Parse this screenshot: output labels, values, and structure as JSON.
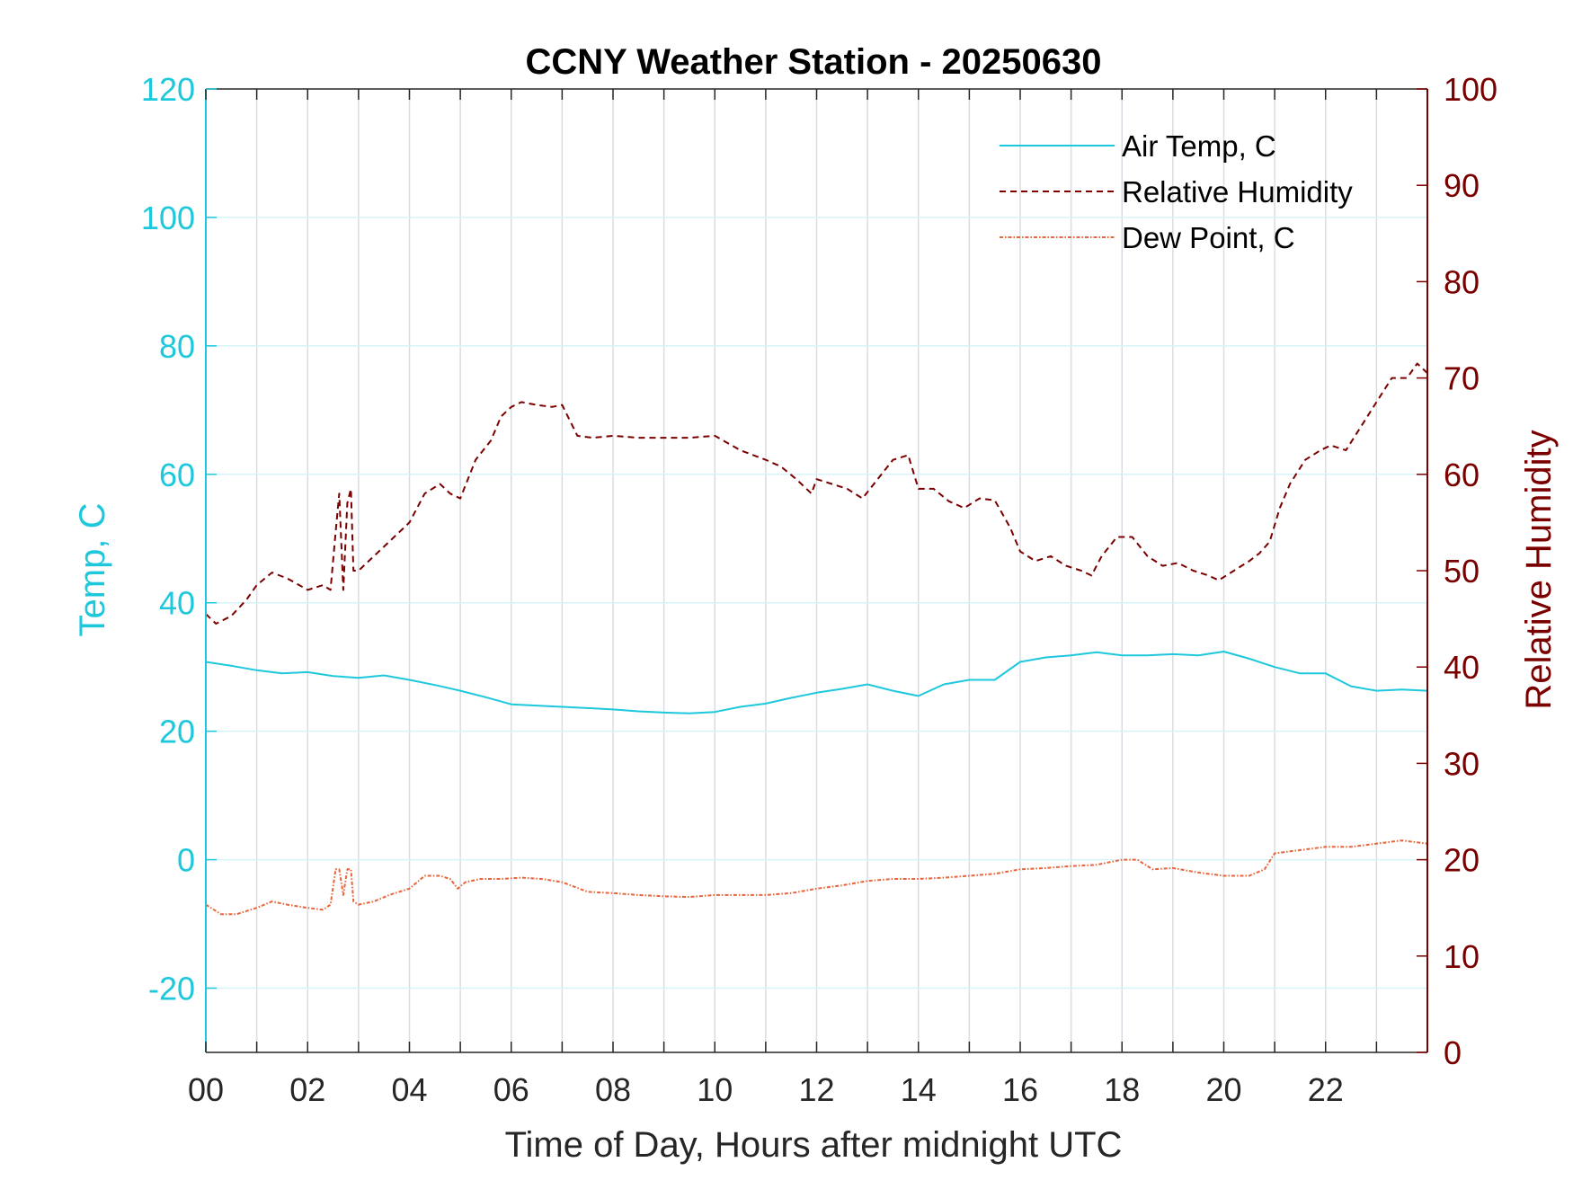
{
  "chart_data": {
    "type": "line",
    "title": "CCNY Weather Station - 20250630",
    "xlabel": "Time of Day, Hours after midnight UTC",
    "ylabel_left": "Temp, C",
    "ylabel_right": "Relative Humidity",
    "xlim": [
      0,
      24
    ],
    "ylim_left": [
      -30,
      120
    ],
    "ylim_right": [
      0,
      100
    ],
    "x_ticks": [
      0,
      2,
      4,
      6,
      8,
      10,
      12,
      14,
      16,
      18,
      20,
      22
    ],
    "x_tick_labels": [
      "00",
      "02",
      "04",
      "06",
      "08",
      "10",
      "12",
      "14",
      "16",
      "18",
      "20",
      "22"
    ],
    "y_left_ticks": [
      -20,
      0,
      20,
      40,
      60,
      80,
      100,
      120
    ],
    "y_right_ticks": [
      0,
      10,
      20,
      30,
      40,
      50,
      60,
      70,
      80,
      90,
      100
    ],
    "grid": true,
    "legend_position": "top-right",
    "colors": {
      "left_axis": "#1ec8dc",
      "right_axis": "#7a0000",
      "air_temp": "#1ec8dc",
      "humidity": "#7a0000",
      "dew_point": "#e8643a",
      "grid_vertical": "#d8dde3",
      "grid_horizontal": "#d6f3f8"
    },
    "series": [
      {
        "name": "Air Temp, C",
        "axis": "left",
        "style": "solid",
        "x": [
          0,
          0.5,
          1,
          1.5,
          2,
          2.5,
          3,
          3.5,
          4,
          4.5,
          5,
          5.5,
          6,
          6.5,
          7,
          7.5,
          8,
          8.5,
          9,
          9.5,
          10,
          10.5,
          11,
          11.5,
          12,
          12.5,
          13,
          13.5,
          14,
          14.5,
          15,
          15.5,
          16,
          16.5,
          17,
          17.5,
          18,
          18.5,
          19,
          19.5,
          20,
          20.5,
          21,
          21.5,
          22,
          22.5,
          23,
          23.5,
          24
        ],
        "y": [
          30.8,
          30.2,
          29.5,
          29.0,
          29.2,
          28.6,
          28.3,
          28.7,
          28.0,
          27.2,
          26.3,
          25.3,
          24.2,
          24.0,
          23.8,
          23.6,
          23.4,
          23.1,
          22.9,
          22.8,
          23.0,
          23.8,
          24.3,
          25.2,
          26.0,
          26.6,
          27.3,
          26.3,
          25.5,
          27.3,
          28.0,
          28.0,
          30.8,
          31.5,
          31.8,
          32.3,
          31.8,
          31.8,
          32.0,
          31.8,
          32.4,
          31.3,
          30.0,
          29.0,
          29.0,
          27.0,
          26.3,
          26.5,
          26.3
        ]
      },
      {
        "name": "Relative Humidity",
        "axis": "right",
        "style": "dashed",
        "x": [
          0,
          0.2,
          0.5,
          0.8,
          1,
          1.3,
          1.6,
          2,
          2.3,
          2.45,
          2.55,
          2.62,
          2.7,
          2.78,
          2.85,
          2.9,
          3,
          3.3,
          3.6,
          4,
          4.3,
          4.6,
          4.8,
          5,
          5.3,
          5.6,
          5.8,
          6,
          6.2,
          6.5,
          6.8,
          7,
          7.3,
          7.6,
          8,
          8.5,
          9,
          9.5,
          10,
          10.5,
          11,
          11.3,
          11.6,
          11.9,
          12,
          12.3,
          12.6,
          12.9,
          13.2,
          13.5,
          13.8,
          14,
          14.3,
          14.6,
          14.9,
          15.2,
          15.5,
          15.8,
          16,
          16.3,
          16.6,
          16.9,
          17.2,
          17.4,
          17.6,
          17.9,
          18.2,
          18.5,
          18.8,
          19.1,
          19.4,
          19.7,
          19.9,
          20.2,
          20.5,
          20.7,
          20.9,
          21.1,
          21.3,
          21.6,
          21.9,
          22.1,
          22.4,
          22.7,
          23,
          23.3,
          23.6,
          23.8,
          24
        ],
        "y": [
          45.5,
          44.5,
          45.3,
          47.0,
          48.5,
          49.8,
          49.2,
          48.0,
          48.5,
          48.0,
          54.0,
          58.0,
          48.0,
          57.0,
          58.5,
          50.0,
          50.0,
          51.5,
          53.0,
          55.0,
          58.0,
          59.0,
          58.0,
          57.5,
          61.5,
          63.5,
          66.0,
          67.0,
          67.5,
          67.2,
          67.0,
          67.2,
          64.0,
          63.8,
          64.0,
          63.8,
          63.8,
          63.8,
          64.0,
          62.5,
          61.5,
          60.8,
          59.5,
          58.0,
          59.5,
          59.0,
          58.5,
          57.5,
          59.5,
          61.5,
          62.0,
          58.5,
          58.5,
          57.2,
          56.5,
          57.5,
          57.3,
          54.5,
          52.0,
          51.0,
          51.5,
          50.5,
          50.0,
          49.5,
          51.5,
          53.5,
          53.5,
          51.5,
          50.5,
          50.8,
          50.0,
          49.5,
          49.0,
          50.0,
          51.0,
          51.8,
          53.0,
          56.5,
          59.0,
          61.5,
          62.5,
          63.0,
          62.5,
          65.0,
          67.5,
          70.0,
          70.0,
          71.5,
          70.5
        ]
      },
      {
        "name": "Dew Point, C",
        "axis": "left",
        "style": "dashdot",
        "x": [
          0,
          0.3,
          0.6,
          1,
          1.3,
          1.6,
          2,
          2.3,
          2.45,
          2.55,
          2.62,
          2.7,
          2.78,
          2.85,
          2.9,
          3,
          3.3,
          3.6,
          4,
          4.3,
          4.6,
          4.8,
          4.95,
          5.1,
          5.4,
          5.8,
          6.2,
          6.6,
          7,
          7.5,
          8,
          8.5,
          9,
          9.5,
          10,
          10.5,
          11,
          11.5,
          12,
          12.5,
          13,
          13.5,
          14,
          14.5,
          15,
          15.5,
          16,
          16.5,
          17,
          17.5,
          18,
          18.3,
          18.6,
          19,
          19.5,
          20,
          20.5,
          20.8,
          21,
          21.5,
          22,
          22.5,
          23,
          23.5,
          24
        ],
        "y": [
          -7.0,
          -8.5,
          -8.5,
          -7.5,
          -6.5,
          -7.0,
          -7.5,
          -7.8,
          -7.0,
          -1.5,
          -1.5,
          -5.5,
          -1.5,
          -1.5,
          -6.5,
          -7.0,
          -6.5,
          -5.5,
          -4.5,
          -2.5,
          -2.5,
          -3.0,
          -4.5,
          -3.5,
          -3.0,
          -3.0,
          -2.8,
          -3.0,
          -3.5,
          -5.0,
          -5.2,
          -5.5,
          -5.7,
          -5.8,
          -5.5,
          -5.5,
          -5.5,
          -5.2,
          -4.5,
          -4.0,
          -3.3,
          -3.0,
          -3.0,
          -2.8,
          -2.5,
          -2.2,
          -1.5,
          -1.3,
          -1.0,
          -0.8,
          0.0,
          0.0,
          -1.5,
          -1.3,
          -2.0,
          -2.5,
          -2.5,
          -1.5,
          1.0,
          1.5,
          2.0,
          2.0,
          2.5,
          3.0,
          2.5
        ]
      }
    ]
  }
}
